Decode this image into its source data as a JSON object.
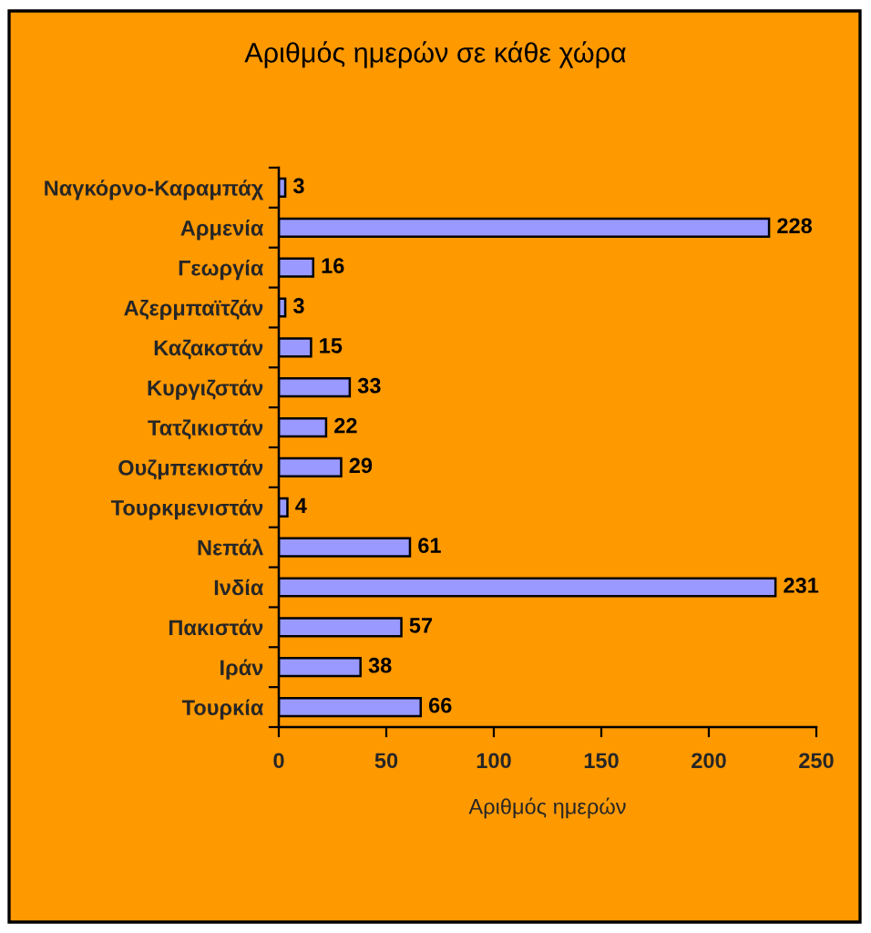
{
  "chart_data": {
    "type": "bar",
    "orientation": "horizontal",
    "title": "Αριθμός ημερών σε κάθε χώρα",
    "xlabel": "Αριθμός ημερών",
    "categories": [
      "Ναγκόρνο-Καραμπάχ",
      "Αρμενία",
      "Γεωργία",
      "Αζερμπαϊτζάν",
      "Καζακστάν",
      "Κυργιζστάν",
      "Τατζικιστάν",
      "Ουζμπεκιστάν",
      "Τουρκμενιστάν",
      "Νεπάλ",
      "Ινδία",
      "Πακιστάν",
      "Ιράν",
      "Τουρκία"
    ],
    "values": [
      3,
      228,
      16,
      3,
      15,
      33,
      22,
      29,
      4,
      61,
      231,
      57,
      38,
      66
    ],
    "color": "#9999ff",
    "xlim": [
      0,
      250
    ],
    "xticks": [
      0,
      50,
      100,
      150,
      200,
      250
    ],
    "data_labels": true
  }
}
